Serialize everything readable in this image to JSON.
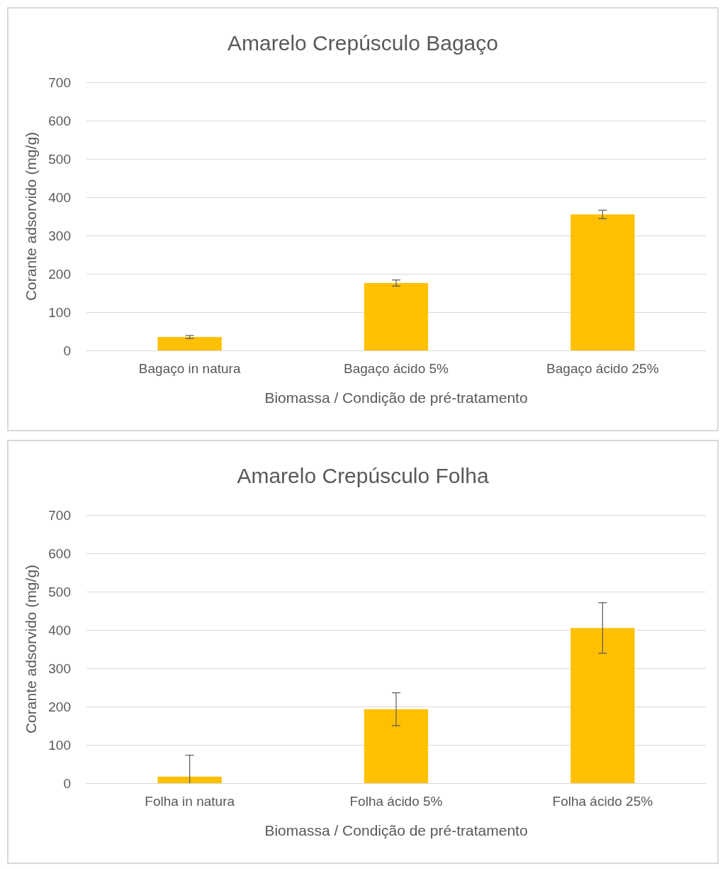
{
  "chart_data": [
    {
      "type": "bar",
      "title": "Amarelo Crepúsculo Bagaço",
      "xlabel": "Biomassa / Condição de pré-tratamento",
      "ylabel": "Corante adsorvido (mg/g)",
      "categories": [
        "Bagaço in natura",
        "Bagaço ácido 5%",
        "Bagaço ácido 25%"
      ],
      "values": [
        35,
        176,
        355
      ],
      "errors": [
        4,
        8,
        11
      ],
      "color": "#ffc000",
      "ylim": [
        0,
        700
      ],
      "yticks": [
        0,
        100,
        200,
        300,
        400,
        500,
        600,
        700
      ],
      "grid": "y"
    },
    {
      "type": "bar",
      "title": "Amarelo Crepúsculo Folha",
      "xlabel": "Biomassa / Condição de pré-tratamento",
      "ylabel": "Corante adsorvido (mg/g)",
      "categories": [
        "Folha in natura",
        "Folha ácido 5%",
        "Folha ácido 25%"
      ],
      "values": [
        17,
        193,
        405
      ],
      "errors": [
        [
          0,
          73
        ],
        43,
        66
      ],
      "color": "#ffc000",
      "ylim": [
        0,
        700
      ],
      "yticks": [
        0,
        100,
        200,
        300,
        400,
        500,
        600,
        700
      ],
      "grid": "y"
    }
  ]
}
